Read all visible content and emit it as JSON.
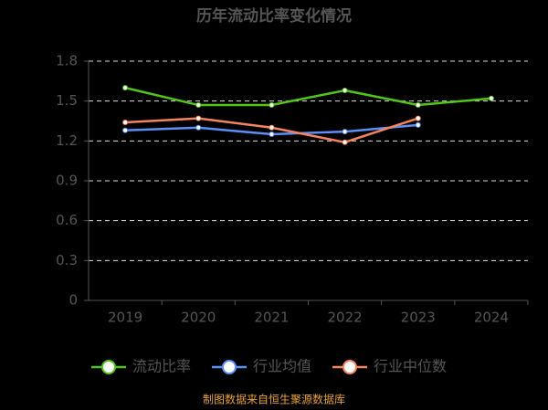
{
  "chart_data": {
    "type": "line",
    "title": "历年流动比率变化情况",
    "categories": [
      "2019",
      "2020",
      "2021",
      "2022",
      "2023",
      "2024"
    ],
    "series": [
      {
        "name": "流动比率",
        "color": "#52c41a",
        "values": [
          1.6,
          1.47,
          1.47,
          1.58,
          1.47,
          1.52
        ]
      },
      {
        "name": "行业均值",
        "color": "#5b8ff9",
        "values": [
          1.28,
          1.3,
          1.25,
          1.27,
          1.32,
          null
        ]
      },
      {
        "name": "行业中位数",
        "color": "#f6845f",
        "values": [
          1.34,
          1.37,
          1.3,
          1.19,
          1.37,
          null
        ]
      }
    ],
    "ylim": [
      0,
      1.8
    ],
    "yticks": [
      0,
      0.3,
      0.6,
      0.9,
      1.2,
      1.5,
      1.8
    ],
    "grid": true,
    "source": "制图数据来自恒生聚源数据库"
  }
}
